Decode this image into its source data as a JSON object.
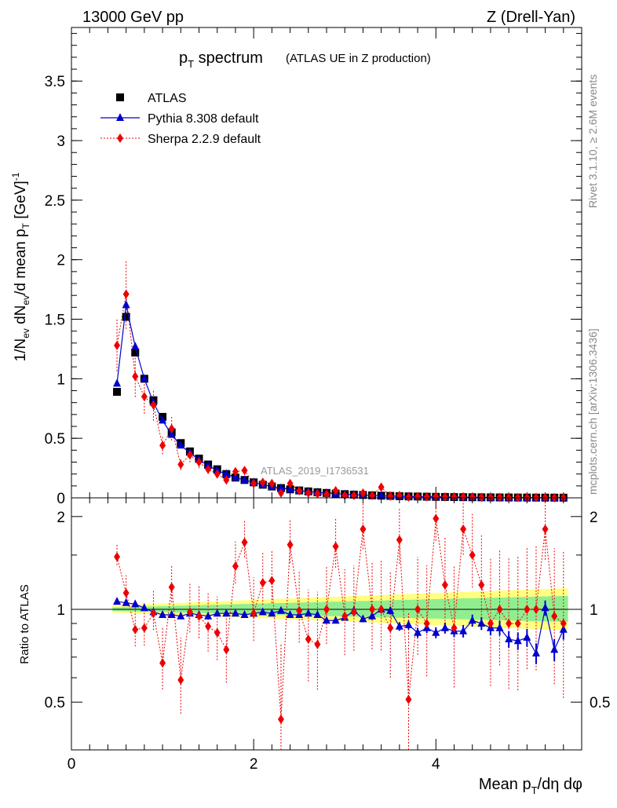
{
  "header": {
    "left": "13000 GeV pp",
    "right": "Z (Drell-Yan)"
  },
  "title": {
    "main": "p",
    "sub": "T",
    "rest": " spectrum",
    "note": "(ATLAS UE in Z production)"
  },
  "side_labels": {
    "rivet": "Rivet 3.1.10, ≥ 2.6M events",
    "mcplots": "mcplots.cern.ch [arXiv:1306.3436]"
  },
  "analysis_label": "ATLAS_2019_I1736531",
  "colors": {
    "data": "#000000",
    "pythia": "#0000cc",
    "sherpa": "#ee0000",
    "band_inner": "#90ee90",
    "band_outer": "#ffff80"
  },
  "legend": [
    {
      "label": "ATLAS",
      "marker": "square"
    },
    {
      "label": "Pythia 8.308 default",
      "marker": "triangle"
    },
    {
      "label": "Sherpa 2.2.9 default",
      "marker": "diamond"
    }
  ],
  "axes": {
    "ylabel_top": "1/N_ev dN_ev/d mean p_T [GeV]^-1",
    "ylabel_bottom": "Ratio to ATLAS",
    "xlabel": "Mean p_T/dη dφ"
  },
  "chart_data": [
    {
      "type": "scatter",
      "panel": "main",
      "xlim": [
        0,
        5.6
      ],
      "ylim": [
        0,
        3.95
      ],
      "x_ticks": [
        0,
        2,
        4
      ],
      "y_ticks": [
        0,
        0.5,
        1,
        1.5,
        2,
        2.5,
        3,
        3.5
      ],
      "x": [
        0.5,
        0.6,
        0.7,
        0.8,
        0.9,
        1.0,
        1.1,
        1.2,
        1.3,
        1.4,
        1.5,
        1.6,
        1.7,
        1.8,
        1.9,
        2.0,
        2.1,
        2.2,
        2.3,
        2.4,
        2.5,
        2.6,
        2.7,
        2.8,
        2.9,
        3.0,
        3.1,
        3.2,
        3.3,
        3.4,
        3.5,
        3.6,
        3.7,
        3.8,
        3.9,
        4.0,
        4.1,
        4.2,
        4.3,
        4.4,
        4.5,
        4.6,
        4.7,
        4.8,
        4.9,
        5.0,
        5.1,
        5.2,
        5.3,
        5.4
      ],
      "series": [
        {
          "name": "ATLAS",
          "values": [
            0.89,
            1.52,
            1.22,
            1.0,
            0.82,
            0.68,
            0.55,
            0.46,
            0.39,
            0.33,
            0.28,
            0.24,
            0.2,
            0.17,
            0.15,
            0.13,
            0.11,
            0.095,
            0.082,
            0.071,
            0.062,
            0.054,
            0.047,
            0.041,
            0.036,
            0.031,
            0.027,
            0.024,
            0.021,
            0.018,
            0.016,
            0.014,
            0.012,
            0.011,
            0.0095,
            0.0083,
            0.0073,
            0.0064,
            0.0056,
            0.0049,
            0.0043,
            0.0038,
            0.0033,
            0.0029,
            0.0026,
            0.0023,
            0.002,
            0.0018,
            0.0016,
            0.0014
          ]
        },
        {
          "name": "Pythia 8.308 default",
          "values": [
            0.96,
            1.62,
            1.27,
            1.0,
            0.8,
            0.65,
            0.53,
            0.44,
            0.38,
            0.32,
            0.27,
            0.23,
            0.2,
            0.17,
            0.15,
            0.13,
            0.11,
            0.095,
            0.082,
            0.07,
            0.061,
            0.053,
            0.046,
            0.04,
            0.035,
            0.03,
            0.026,
            0.023,
            0.02,
            0.017,
            0.015,
            0.013,
            0.011,
            0.01,
            0.009,
            0.008,
            0.007,
            0.006,
            0.005,
            0.005,
            0.004,
            0.0035,
            0.003,
            0.0025,
            0.002,
            0.002,
            0.002,
            0.0015,
            0.0014,
            0.0012
          ]
        },
        {
          "name": "Sherpa 2.2.9 default",
          "values": [
            1.28,
            1.71,
            1.02,
            0.85,
            0.78,
            0.44,
            0.58,
            0.28,
            0.36,
            0.3,
            0.24,
            0.2,
            0.15,
            0.22,
            0.23,
            0.12,
            0.13,
            0.12,
            0.04,
            0.12,
            0.06,
            0.04,
            0.035,
            0.03,
            0.06,
            0.02,
            0.02,
            0.04,
            0.02,
            0.09,
            0.014,
            0.02,
            0.006,
            0.01,
            0.008,
            0.012,
            0.008,
            0.007,
            0.009,
            0.007,
            0.005,
            0.003,
            0.004,
            0.002,
            0.002,
            0.002,
            0.003,
            0.002,
            0.0015,
            0.0012
          ]
        }
      ]
    },
    {
      "type": "scatter",
      "panel": "ratio",
      "xlim": [
        0,
        5.6
      ],
      "ylim": [
        0.35,
        2.3
      ],
      "x_ticks": [
        0,
        2,
        4
      ],
      "y_ticks": [
        0.5,
        1,
        2
      ],
      "x": [
        0.5,
        0.6,
        0.7,
        0.8,
        0.9,
        1.0,
        1.1,
        1.2,
        1.3,
        1.4,
        1.5,
        1.6,
        1.7,
        1.8,
        1.9,
        2.0,
        2.1,
        2.2,
        2.3,
        2.4,
        2.5,
        2.6,
        2.7,
        2.8,
        2.9,
        3.0,
        3.1,
        3.2,
        3.3,
        3.4,
        3.5,
        3.6,
        3.7,
        3.8,
        3.9,
        4.0,
        4.1,
        4.2,
        4.3,
        4.4,
        4.5,
        4.6,
        4.7,
        4.8,
        4.9,
        5.0,
        5.1,
        5.2,
        5.3,
        5.4
      ],
      "series": [
        {
          "name": "Pythia 8.308 default",
          "values": [
            1.06,
            1.05,
            1.04,
            1.01,
            0.98,
            0.96,
            0.96,
            0.95,
            0.97,
            0.96,
            0.95,
            0.97,
            0.97,
            0.97,
            0.96,
            0.97,
            0.98,
            0.97,
            0.99,
            0.96,
            0.96,
            0.97,
            0.96,
            0.92,
            0.92,
            0.94,
            0.99,
            0.93,
            0.95,
            1.0,
            0.99,
            0.88,
            0.89,
            0.84,
            0.87,
            0.84,
            0.87,
            0.85,
            0.85,
            0.92,
            0.9,
            0.87,
            0.87,
            0.8,
            0.79,
            0.81,
            0.72,
            1.01,
            0.74,
            0.86
          ]
        },
        {
          "name": "Sherpa 2.2.9 default",
          "values": [
            1.48,
            1.13,
            0.86,
            0.87,
            0.97,
            0.67,
            1.18,
            0.59,
            0.98,
            0.95,
            0.88,
            0.84,
            0.74,
            1.38,
            1.65,
            0.97,
            1.22,
            1.24,
            0.44,
            1.62,
            0.99,
            0.8,
            0.77,
            1.0,
            1.6,
            0.95,
            0.98,
            1.82,
            1.0,
            1.0,
            0.87,
            1.68,
            0.51,
            1.0,
            0.9,
            1.97,
            1.2,
            0.87,
            1.82,
            1.5,
            1.2,
            0.9,
            1.0,
            0.9,
            0.9,
            1.0,
            1.0,
            1.82,
            0.95,
            0.9
          ]
        }
      ],
      "reference": 1.0
    }
  ]
}
